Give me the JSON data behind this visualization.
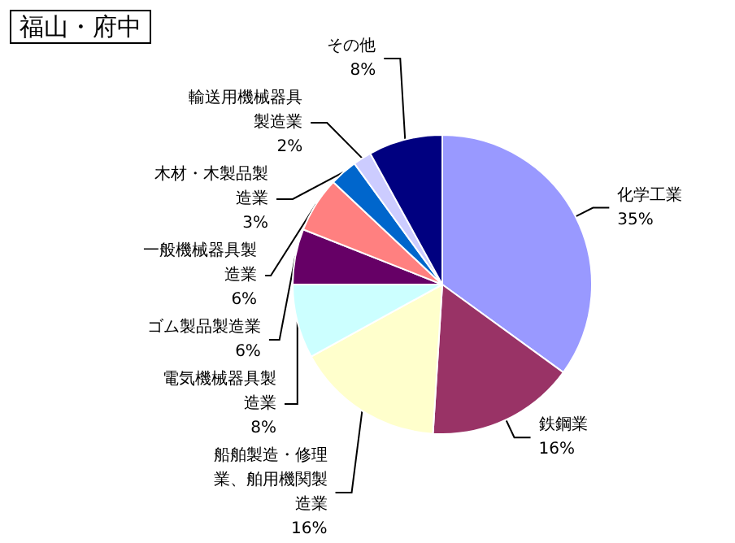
{
  "chart_data": {
    "type": "pie",
    "title": "福山・府中",
    "categories": [
      "化学工業",
      "鉄鋼業",
      "船舶製造・修理業、舶用機関製造業",
      "電気機械器具製造業",
      "ゴム製品製造業",
      "一般機械器具製造業",
      "木材・木製品製造業",
      "輸送用機械器具製造業",
      "その他"
    ],
    "values": [
      35,
      16,
      16,
      8,
      6,
      6,
      3,
      2,
      8
    ],
    "value_labels": [
      "35%",
      "16%",
      "16%",
      "8%",
      "6%",
      "6%",
      "3%",
      "2%",
      "8%"
    ],
    "colors": [
      "#9999ff",
      "#993366",
      "#ffffcc",
      "#ccffff",
      "#660066",
      "#ff8080",
      "#0066cc",
      "#ccccff",
      "#000080"
    ]
  }
}
